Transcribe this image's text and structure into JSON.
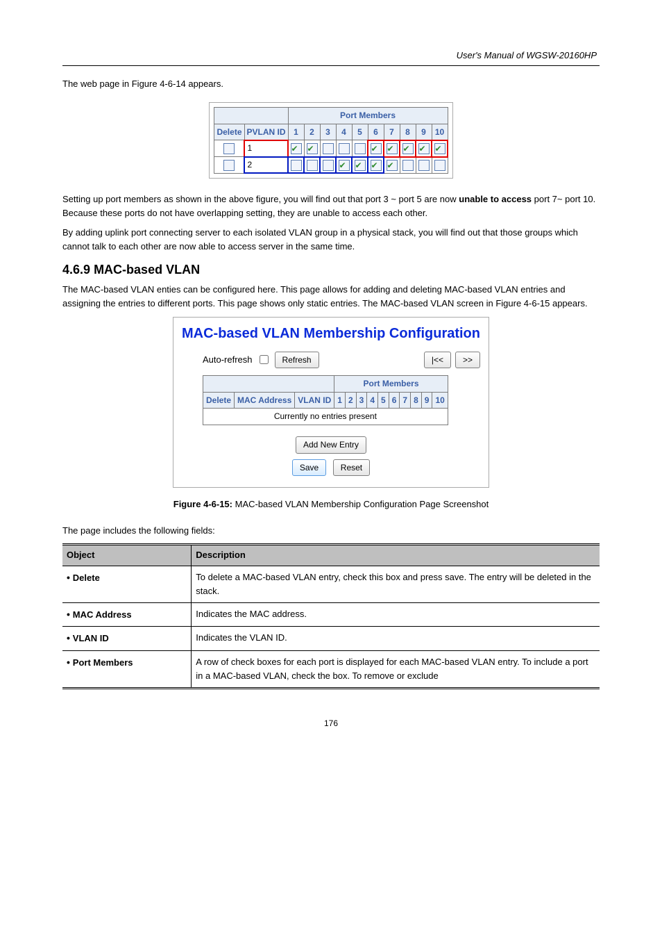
{
  "header_text": "User's Manual of WGSW-20160HP",
  "intro_para": "The web page in Figure 4-6-14 appears.",
  "pvlan_table": {
    "port_members_label": "Port Members",
    "cols": [
      "Delete",
      "PVLAN ID",
      "1",
      "2",
      "3",
      "4",
      "5",
      "6",
      "7",
      "8",
      "9",
      "10"
    ],
    "rows": [
      {
        "id": "1",
        "hl": "red",
        "members": [
          1,
          1,
          0,
          0,
          0,
          1,
          1,
          1,
          1,
          1,
          1
        ]
      },
      {
        "id": "2",
        "hl": "blue",
        "members": [
          0,
          0,
          0,
          1,
          1,
          1,
          1,
          0,
          0,
          0,
          0
        ]
      }
    ]
  },
  "setting_para_1_prefix": "Setting up port members as shown in the above figure, you will find out that port 3 ~ port 5 are now",
  "setting_para_1_bold": "unable to access",
  "setting_para_1_suffix": " port 7~ port 10. Because these ports do not have overlapping setting, they are unable to access each other.",
  "setting_para_2": "By adding uplink port connecting server to each isolated VLAN group in a physical stack, you will find out that those groups which cannot talk to each other are now able to access server in the same time.",
  "section_num": "4.6.9",
  "section_title": "MAC-based VLAN",
  "section_para": "The MAC-based VLAN enties can be configured here. This page allows for adding and deleting MAC-based VLAN entries and assigning the entries to different ports. This page shows only static entries. The MAC-based VLAN screen in Figure 4-6-15 appears.",
  "mvlan": {
    "title": "MAC-based VLAN Membership Configuration",
    "auto_refresh_label": "Auto-refresh",
    "refresh_btn": "Refresh",
    "prev_btn": "|<<",
    "next_btn": ">>",
    "port_members_label": "Port Members",
    "cols": [
      "Delete",
      "MAC Address",
      "VLAN ID",
      "1",
      "2",
      "3",
      "4",
      "5",
      "6",
      "7",
      "8",
      "9",
      "10"
    ],
    "empty_msg": "Currently no entries present",
    "add_btn": "Add New Entry",
    "save_btn": "Save",
    "reset_btn": "Reset"
  },
  "caption_prefix": "Figure 4-6-15:",
  "caption_text": " MAC-based VLAN Membership Configuration Page Screenshot",
  "objtbl": {
    "head_obj": "Object",
    "head_desc": "Description",
    "rows": [
      {
        "obj": "Delete",
        "desc": "To delete a MAC-based VLAN entry, check this box and press save. The entry will be deleted in the stack."
      },
      {
        "obj": "MAC Address",
        "desc": "Indicates the MAC address."
      },
      {
        "obj": "VLAN ID",
        "desc": "Indicates the VLAN ID."
      },
      {
        "obj": "Port Members",
        "desc": "A row of check boxes for each port is displayed for each MAC-based VLAN entry. To include a port in a MAC-based VLAN, check the box. To remove or exclude"
      }
    ]
  },
  "page_number": "176"
}
